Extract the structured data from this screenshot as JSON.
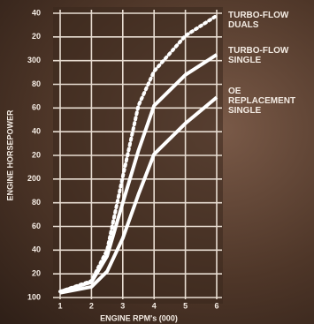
{
  "chart_data": {
    "type": "line",
    "x_label": "ENGINE RPM's (000)",
    "y_label": "ENGINE HORSEPOWER",
    "x": [
      1,
      2,
      2.5,
      3,
      3.5,
      4,
      5,
      6
    ],
    "series": [
      {
        "name": "TURBO-FLOW DUALS",
        "color": "#ffffff",
        "style": "dotted",
        "values": [
          105,
          114,
          140,
          202,
          262,
          291,
          321,
          338
        ]
      },
      {
        "name": "TURBO-FLOW SINGLE",
        "color": "#ffffff",
        "style": "solid",
        "values": [
          105,
          113,
          135,
          180,
          224,
          262,
          288,
          305
        ]
      },
      {
        "name": "OE REPLACEMENT SINGLE",
        "color": "#ffffff",
        "style": "solid",
        "values": [
          104,
          109,
          122,
          150,
          187,
          221,
          247,
          269
        ]
      }
    ],
    "xlim": [
      1,
      6
    ],
    "xticks": [
      1,
      2,
      3,
      4,
      5,
      6
    ],
    "ylim": [
      100,
      340
    ],
    "yticks": [
      100,
      {
        "value": 120,
        "label": "20"
      },
      {
        "value": 140,
        "label": "40"
      },
      {
        "value": 160,
        "label": "60"
      },
      {
        "value": 180,
        "label": "80"
      },
      200,
      {
        "value": 220,
        "label": "20"
      },
      {
        "value": 240,
        "label": "40"
      },
      {
        "value": 260,
        "label": "60"
      },
      {
        "value": 280,
        "label": "80"
      },
      300,
      {
        "value": 320,
        "label": "20"
      },
      {
        "value": 340,
        "label": "40"
      }
    ],
    "grid": true
  }
}
